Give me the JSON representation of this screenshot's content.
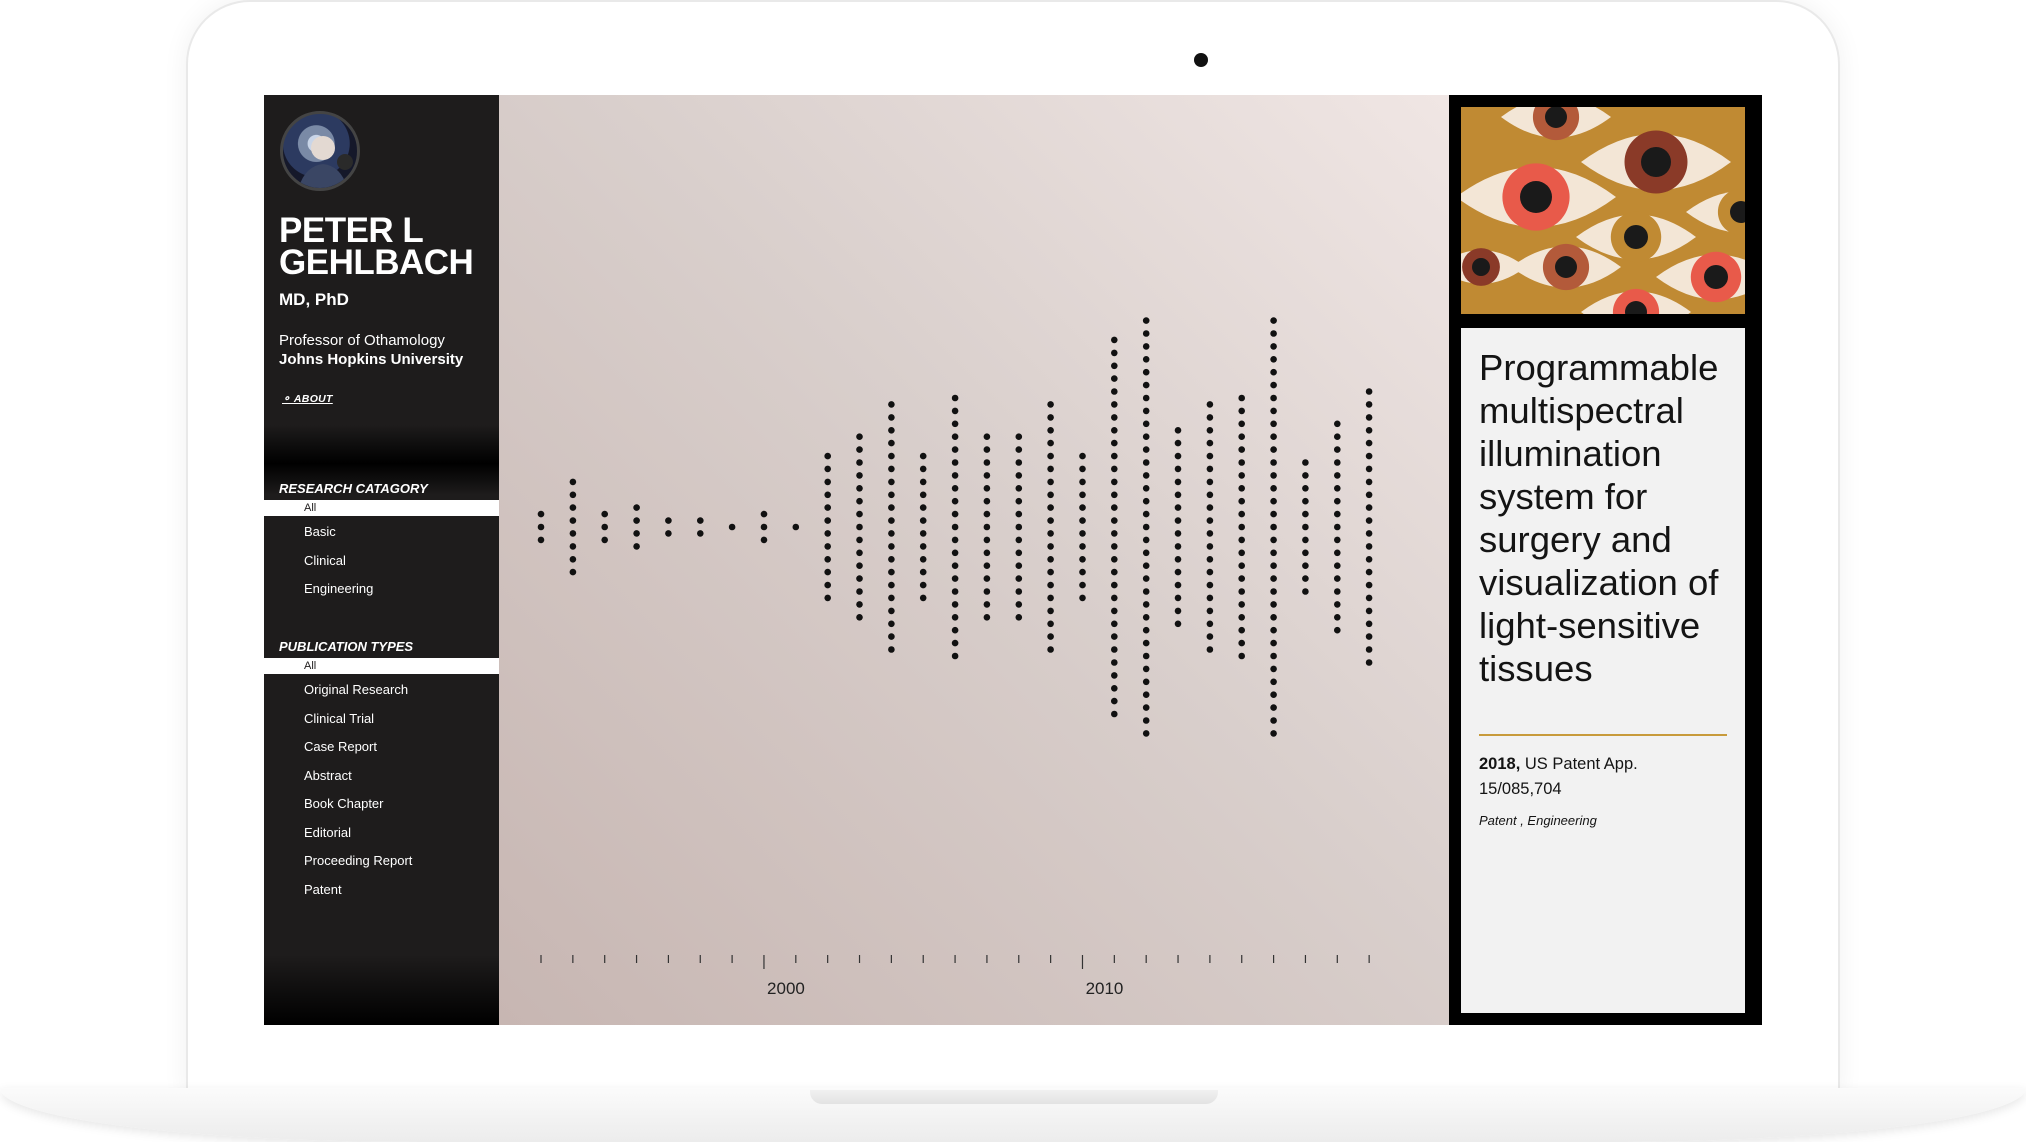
{
  "profile": {
    "name_line1": "PETER L",
    "name_line2": "GEHLBACH",
    "degree": "MD, PhD",
    "title": "Professor of Othamology",
    "university": "Johns Hopkins University",
    "about_label": "⚬ ABOUT"
  },
  "research_category": {
    "heading": "RESEARCH CATAGORY",
    "items": [
      {
        "label": "All",
        "active": true
      },
      {
        "label": "Basic",
        "active": false
      },
      {
        "label": "Clinical",
        "active": false
      },
      {
        "label": "Engineering",
        "active": false
      }
    ]
  },
  "publication_types": {
    "heading": "PUBLICATION TYPES",
    "items": [
      {
        "label": "All",
        "active": true
      },
      {
        "label": "Original Research",
        "active": false
      },
      {
        "label": "Clinical Trial",
        "active": false
      },
      {
        "label": "Case Report",
        "active": false
      },
      {
        "label": "Abstract",
        "active": false
      },
      {
        "label": "Book Chapter",
        "active": false
      },
      {
        "label": "Editorial",
        "active": false
      },
      {
        "label": "Proceeding Report",
        "active": false
      },
      {
        "label": "Patent",
        "active": false
      }
    ]
  },
  "chart_data": {
    "type": "scatter",
    "description_of_encoding": "each dot is one publication, stacked vertically per year",
    "x": [
      1993,
      1994,
      1995,
      1996,
      1997,
      1998,
      1999,
      2000,
      2001,
      2002,
      2003,
      2004,
      2005,
      2006,
      2007,
      2008,
      2009,
      2010,
      2011,
      2012,
      2013,
      2014,
      2015,
      2016,
      2017,
      2018,
      2019
    ],
    "counts": [
      3,
      8,
      3,
      4,
      2,
      2,
      1,
      3,
      1,
      12,
      15,
      20,
      12,
      21,
      15,
      15,
      20,
      12,
      30,
      33,
      16,
      20,
      21,
      33,
      11,
      17,
      22
    ],
    "xlim": [
      1993,
      2020
    ],
    "tick_labels": [
      "2000",
      "2010"
    ],
    "xlabel": "",
    "ylabel": ""
  },
  "selected_publication": {
    "thumbnail_icon": "eyes-pattern-icon",
    "title": "Programmable multispectral illumination system for surgery and visualization of light-sensitive tissues",
    "year": "2018,",
    "source": "US Patent App. 15/085,704",
    "tags": "Patent , Engineering",
    "colors": {
      "accent": "#c89b3c",
      "thumb_bg": "#c08a33"
    }
  }
}
